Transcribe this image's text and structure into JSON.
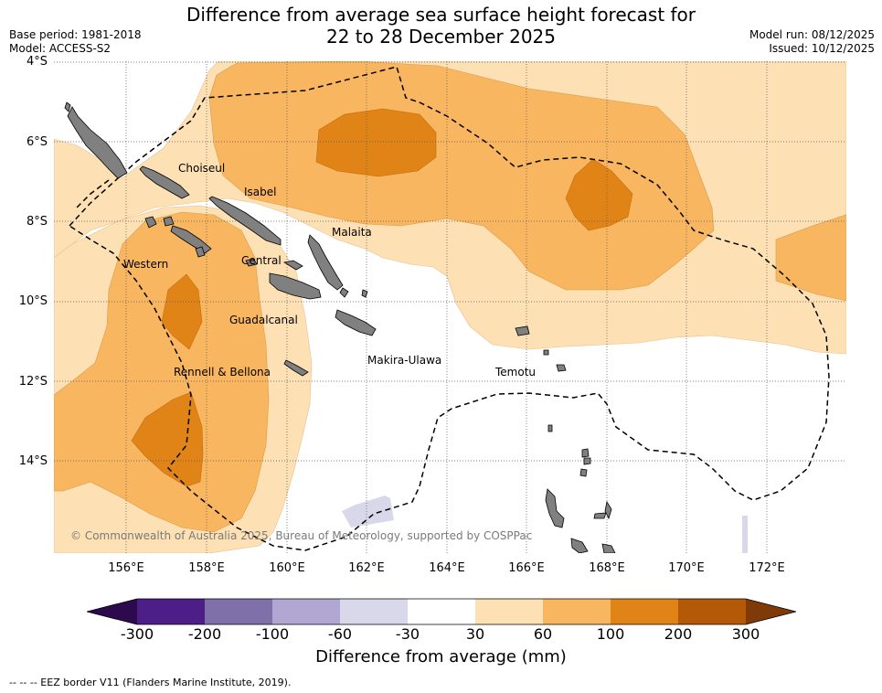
{
  "title_line1": "Difference from average sea surface height forecast for",
  "title_line2": "22 to 28 December 2025",
  "base_period": "Base period: 1981-2018",
  "model": "Model: ACCESS-S2",
  "model_run": "Model run: 08/12/2025",
  "issued": "Issued: 10/12/2025",
  "lat_labels": [
    "4°S",
    "6°S",
    "8°S",
    "10°S",
    "12°S",
    "14°S"
  ],
  "lon_labels": [
    "156°E",
    "158°E",
    "160°E",
    "162°E",
    "164°E",
    "166°E",
    "168°E",
    "170°E",
    "172°E"
  ],
  "regions": {
    "choiseul": "Choiseul",
    "isabel": "Isabel",
    "malaita": "Malaita",
    "western": "Western",
    "central": "Central",
    "guadalcanal": "Guadalcanal",
    "makira_ulawa": "Makira-Ulawa",
    "temotu": "Temotu",
    "rennell_bellona": "Rennell & Bellona"
  },
  "copyright": "© Commonwealth of Australia 2025, Bureau of Meteorology, supported by COSPPac",
  "colorbar": {
    "ticks": [
      "-300",
      "-200",
      "-100",
      "-60",
      "-30",
      "30",
      "60",
      "100",
      "200",
      "300"
    ],
    "colors": [
      "#2d0a4e",
      "#4e1e88",
      "#8070aa",
      "#b0a8d2",
      "#d8d8ea",
      "#ffffff",
      "#fde0b4",
      "#f8b660",
      "#e08418",
      "#b45908",
      "#7f3a08"
    ],
    "label": "Difference from average (mm)"
  },
  "eez_note": "--  --  -- EEZ border V11 (Flanders Marine Institute, 2019)."
}
